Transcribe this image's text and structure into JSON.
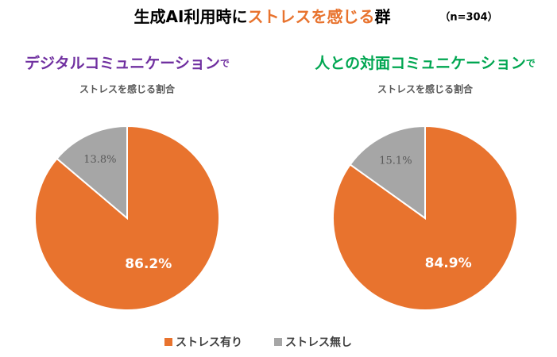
{
  "title": {
    "prefix": "生成AI利用時に",
    "highlight": "ストレスを感じる",
    "suffix": "群",
    "note": "（n=304）",
    "highlight_color": "#E8732E"
  },
  "chart_data": [
    {
      "type": "pie",
      "title": "デジタルコミュニケーション",
      "title_suffix": "で",
      "title_color": "#7030A0",
      "subtitle": "ストレスを感じる割合",
      "categories": [
        "ストレス有り",
        "ストレス無し"
      ],
      "values": [
        86.2,
        13.8
      ],
      "value_labels": [
        "86.2%",
        "13.8%"
      ],
      "colors": [
        "#E8732E",
        "#A6A6A6"
      ],
      "label_colors": [
        "#FFFFFF",
        "#595959"
      ]
    },
    {
      "type": "pie",
      "title": "人との対面コミュニケーション",
      "title_suffix": "で",
      "title_color": "#00A651",
      "subtitle": "ストレスを感じる割合",
      "categories": [
        "ストレス有り",
        "ストレス無し"
      ],
      "values": [
        84.9,
        15.1
      ],
      "value_labels": [
        "84.9%",
        "15.1%"
      ],
      "colors": [
        "#E8732E",
        "#A6A6A6"
      ],
      "label_colors": [
        "#FFFFFF",
        "#595959"
      ]
    }
  ]
}
